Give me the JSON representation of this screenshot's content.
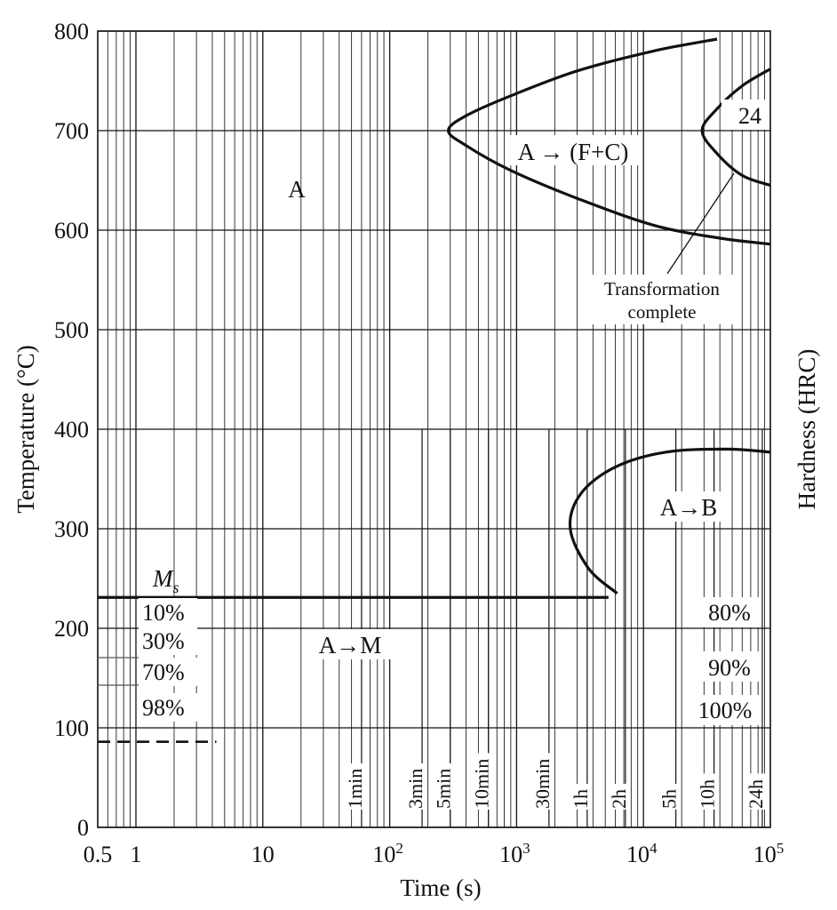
{
  "chart_data": {
    "type": "line",
    "xlabel": "Time (s)",
    "ylabel": "Temperature (°C)",
    "ylabel_right": "Hardness (HRC)",
    "x_scale": "log",
    "xlim": [
      0.5,
      100000
    ],
    "ylim": [
      0,
      800
    ],
    "x_ticks": [
      {
        "value": 0.5,
        "label": "0.5"
      },
      {
        "value": 1,
        "label": "1"
      },
      {
        "value": 10,
        "label": "10"
      },
      {
        "value": 100,
        "base": "10",
        "exp": "2"
      },
      {
        "value": 1000,
        "base": "10",
        "exp": "3"
      },
      {
        "value": 10000,
        "base": "10",
        "exp": "4"
      },
      {
        "value": 100000,
        "base": "10",
        "exp": "5"
      }
    ],
    "y_ticks": [
      0,
      100,
      200,
      300,
      400,
      500,
      600,
      700,
      800
    ],
    "grid": true,
    "time_marks": [
      {
        "label": "1min",
        "value": 60
      },
      {
        "label": "3min",
        "value": 180
      },
      {
        "label": "5min",
        "value": 300
      },
      {
        "label": "10min",
        "value": 600
      },
      {
        "label": "30min",
        "value": 1800
      },
      {
        "label": "1h",
        "value": 3600
      },
      {
        "label": "2h",
        "value": 7200
      },
      {
        "label": "5h",
        "value": 18000
      },
      {
        "label": "10h",
        "value": 36000
      },
      {
        "label": "24h",
        "value": 86400
      }
    ],
    "series": [
      {
        "role": "pearlite-start",
        "points": [
          [
            38000,
            792
          ],
          [
            12000,
            780
          ],
          [
            3000,
            760
          ],
          [
            900,
            735
          ],
          [
            400,
            715
          ],
          [
            290,
            700
          ],
          [
            400,
            685
          ],
          [
            900,
            660
          ],
          [
            3000,
            632
          ],
          [
            12000,
            605
          ],
          [
            40000,
            592
          ],
          [
            100000,
            586
          ]
        ]
      },
      {
        "role": "pearlite-finish",
        "points": [
          [
            100000,
            762
          ],
          [
            60000,
            745
          ],
          [
            38000,
            722
          ],
          [
            29000,
            700
          ],
          [
            38000,
            677
          ],
          [
            60000,
            655
          ],
          [
            100000,
            645
          ]
        ]
      },
      {
        "role": "bainite-start",
        "points": [
          [
            6200,
            235
          ],
          [
            3700,
            260
          ],
          [
            2650,
            300
          ],
          [
            3200,
            335
          ],
          [
            6000,
            362
          ],
          [
            15000,
            377
          ],
          [
            45000,
            380
          ],
          [
            100000,
            377
          ]
        ]
      },
      {
        "role": "ms-line",
        "points": [
          [
            0.5,
            231
          ],
          [
            5300,
            231
          ]
        ]
      },
      {
        "role": "m98-line",
        "points": [
          [
            0.5,
            86
          ],
          [
            4.3,
            86
          ]
        ],
        "style": "dashed"
      }
    ],
    "ms_label": {
      "base": "M",
      "sub": "s"
    },
    "martensite_percent_labels": [
      "10%",
      "30%",
      "70%",
      "98%"
    ],
    "right_labels": {
      "top": "24",
      "80": "80%",
      "90": "90%",
      "100": "100%"
    },
    "region_labels": {
      "austenite": "A",
      "pearlite": "A → (F+C)",
      "bainite": "A→B",
      "martensite": "A→M"
    },
    "annotation": {
      "line1": "Transformation",
      "line2": "complete"
    }
  }
}
